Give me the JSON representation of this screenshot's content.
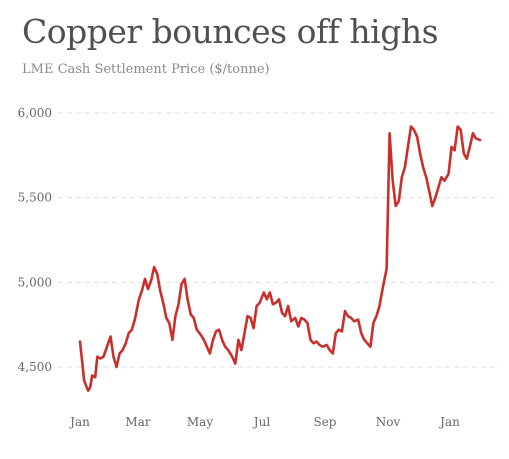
{
  "title": "Copper bounces off highs",
  "subtitle": "LME Cash Settlement Price ($/tonne)",
  "colors": {
    "line": "#c9302c",
    "grid": "#dddddd",
    "text": "#505050",
    "tick": "#666666"
  },
  "chart_data": {
    "type": "line",
    "title": "Copper bounces off highs",
    "subtitle": "LME Cash Settlement Price ($/tonne)",
    "xlabel": "",
    "ylabel": "",
    "ylim": [
      4300,
      6100
    ],
    "y_ticks": [
      {
        "value": 4500,
        "label": "4,500"
      },
      {
        "value": 5000,
        "label": "5,000"
      },
      {
        "value": 5500,
        "label": "5,500"
      },
      {
        "value": 6000,
        "label": "6,000"
      }
    ],
    "x_ticks": [
      "Jan",
      "Mar",
      "May",
      "Jul",
      "Sep",
      "Nov",
      "Jan"
    ],
    "grid": "horizontal dashed",
    "series": [
      {
        "x": [
          "2016-01-04",
          "2016-01-06",
          "2016-01-08",
          "2016-01-12",
          "2016-01-14",
          "2016-01-16",
          "2016-01-19",
          "2016-01-21",
          "2016-01-24",
          "2016-01-27",
          "2016-01-30",
          "2016-02-03",
          "2016-02-06",
          "2016-02-09",
          "2016-02-12",
          "2016-02-15",
          "2016-02-18",
          "2016-02-21",
          "2016-02-24",
          "2016-02-27",
          "2016-03-02",
          "2016-03-05",
          "2016-03-08",
          "2016-03-11",
          "2016-03-14",
          "2016-03-17",
          "2016-03-20",
          "2016-03-23",
          "2016-03-26",
          "2016-03-29",
          "2016-04-01",
          "2016-04-04",
          "2016-04-07",
          "2016-04-10",
          "2016-04-13",
          "2016-04-16",
          "2016-04-19",
          "2016-04-22",
          "2016-04-25",
          "2016-04-28",
          "2016-05-02",
          "2016-05-05",
          "2016-05-08",
          "2016-05-11",
          "2016-05-14",
          "2016-05-17",
          "2016-05-20",
          "2016-05-23",
          "2016-05-26",
          "2016-05-29",
          "2016-06-02",
          "2016-06-05",
          "2016-06-08",
          "2016-06-11",
          "2016-06-14",
          "2016-06-17",
          "2016-06-20",
          "2016-06-23",
          "2016-06-26",
          "2016-06-29",
          "2016-07-03",
          "2016-07-06",
          "2016-07-09",
          "2016-07-12",
          "2016-07-15",
          "2016-07-18",
          "2016-07-21",
          "2016-07-24",
          "2016-07-27",
          "2016-07-30",
          "2016-08-03",
          "2016-08-06",
          "2016-08-09",
          "2016-08-12",
          "2016-08-15",
          "2016-08-18",
          "2016-08-21",
          "2016-08-24",
          "2016-08-27",
          "2016-08-30",
          "2016-09-03",
          "2016-09-06",
          "2016-09-09",
          "2016-09-12",
          "2016-09-15",
          "2016-09-18",
          "2016-09-21",
          "2016-09-24",
          "2016-09-27",
          "2016-09-30",
          "2016-10-04",
          "2016-10-07",
          "2016-10-10",
          "2016-10-13",
          "2016-10-16",
          "2016-10-19",
          "2016-10-22",
          "2016-10-25",
          "2016-10-28",
          "2016-11-01",
          "2016-11-04",
          "2016-11-07",
          "2016-11-10",
          "2016-11-13",
          "2016-11-16",
          "2016-11-19",
          "2016-11-22",
          "2016-11-25",
          "2016-11-28",
          "2016-12-01",
          "2016-12-04",
          "2016-12-07",
          "2016-12-10",
          "2016-12-13",
          "2016-12-16",
          "2016-12-19",
          "2016-12-22",
          "2016-12-25",
          "2016-12-28",
          "2017-01-01",
          "2017-01-04",
          "2017-01-07",
          "2017-01-10",
          "2017-01-13",
          "2017-01-16",
          "2017-01-19",
          "2017-01-22",
          "2017-01-25",
          "2017-01-28",
          "2017-02-01"
        ],
        "values": [
          4650,
          4540,
          4420,
          4360,
          4380,
          4450,
          4440,
          4560,
          4550,
          4560,
          4610,
          4680,
          4560,
          4500,
          4580,
          4600,
          4640,
          4700,
          4720,
          4780,
          4900,
          4950,
          5020,
          4960,
          5010,
          5090,
          5050,
          4950,
          4880,
          4790,
          4760,
          4660,
          4800,
          4870,
          4990,
          5020,
          4900,
          4810,
          4790,
          4720,
          4690,
          4660,
          4620,
          4580,
          4660,
          4710,
          4720,
          4660,
          4620,
          4600,
          4560,
          4520,
          4660,
          4600,
          4700,
          4800,
          4790,
          4730,
          4860,
          4880,
          4940,
          4900,
          4940,
          4870,
          4880,
          4900,
          4820,
          4800,
          4860,
          4770,
          4790,
          4740,
          4790,
          4780,
          4760,
          4660,
          4640,
          4650,
          4630,
          4620,
          4630,
          4600,
          4580,
          4700,
          4720,
          4710,
          4830,
          4800,
          4790,
          4770,
          4780,
          4700,
          4660,
          4640,
          4620,
          4760,
          4800,
          4860,
          4960,
          5080,
          5880,
          5600,
          5450,
          5480,
          5620,
          5680,
          5800,
          5920,
          5900,
          5860,
          5760,
          5680,
          5620,
          5540,
          5450,
          5500,
          5560,
          5620,
          5600,
          5640,
          5800,
          5780,
          5920,
          5900,
          5760,
          5730,
          5800,
          5880,
          5850,
          5840
        ]
      }
    ]
  }
}
